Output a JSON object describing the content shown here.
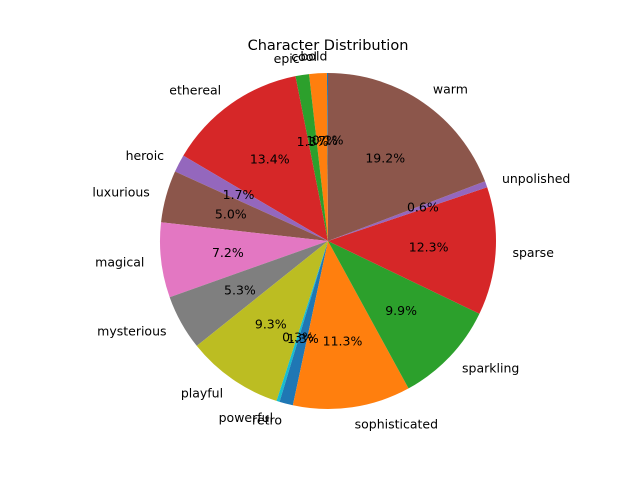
{
  "chart_data": {
    "type": "pie",
    "title": "Character Distribution",
    "start_angle_deg": 90,
    "direction": "counterclockwise",
    "autopct_decimals": 1,
    "slices": [
      {
        "label": "bold",
        "value": 0.1,
        "color": "#1f77b4"
      },
      {
        "label": "cool",
        "value": 1.7,
        "color": "#ff7f0e"
      },
      {
        "label": "epic",
        "value": 1.3,
        "color": "#2ca02c"
      },
      {
        "label": "ethereal",
        "value": 13.4,
        "color": "#d62728"
      },
      {
        "label": "heroic",
        "value": 1.7,
        "color": "#9467bd"
      },
      {
        "label": "luxurious",
        "value": 5.0,
        "color": "#8c564b"
      },
      {
        "label": "magical",
        "value": 7.2,
        "color": "#e377c2"
      },
      {
        "label": "mysterious",
        "value": 5.3,
        "color": "#7f7f7f"
      },
      {
        "label": "playful",
        "value": 9.3,
        "color": "#bcbd22"
      },
      {
        "label": "powerful",
        "value": 0.3,
        "color": "#17becf"
      },
      {
        "label": "retro",
        "value": 1.3,
        "color": "#1f77b4"
      },
      {
        "label": "sophisticated",
        "value": 11.3,
        "color": "#ff7f0e"
      },
      {
        "label": "sparkling",
        "value": 9.9,
        "color": "#2ca02c"
      },
      {
        "label": "sparse",
        "value": 12.3,
        "color": "#d62728"
      },
      {
        "label": "unpolished",
        "value": 0.6,
        "color": "#9467bd"
      },
      {
        "label": "warm",
        "value": 19.2,
        "color": "#8c564b"
      }
    ]
  }
}
